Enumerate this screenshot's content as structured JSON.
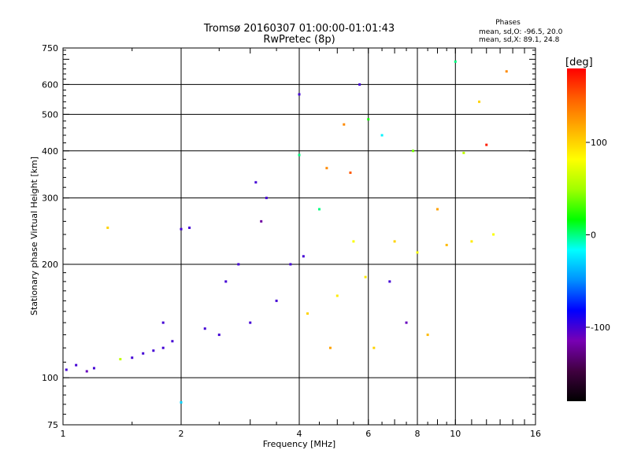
{
  "chart_data": {
    "type": "scatter",
    "title": "Tromsø 20160307 01:00:00-01:01:43",
    "subtitle": "RwPretec (8p)",
    "xlabel": "Frequency [MHz]",
    "ylabel": "Stationary phase Virtual Height [km]",
    "x_scale": "log",
    "y_scale": "log",
    "xlim": [
      1,
      16
    ],
    "ylim": [
      75,
      750
    ],
    "x_ticks": [
      "1",
      "2",
      "4",
      "6",
      "8",
      "10",
      "16"
    ],
    "x_tick_values": [
      1,
      2,
      4,
      6,
      8,
      10,
      16
    ],
    "y_ticks": [
      "75",
      "100",
      "200",
      "300",
      "400",
      "500",
      "600",
      "750"
    ],
    "y_tick_values": [
      75,
      100,
      200,
      300,
      400,
      500,
      600,
      750
    ],
    "x_grid_values": [
      2,
      4,
      6,
      8,
      10
    ],
    "y_grid_values": [
      100,
      200,
      300,
      400,
      500,
      600
    ],
    "grid": true,
    "phase_header": "Phases",
    "phase_stats": [
      "mean, sd,O: -96.5, 20.0",
      "mean, sd,X:  89.1, 24.8"
    ],
    "colorbar": {
      "label": "[deg]",
      "range": [
        -180,
        180
      ],
      "ticks": [
        "100",
        "0",
        "-100"
      ],
      "tick_values": [
        100,
        0,
        -100
      ],
      "colors": [
        "#000000",
        "#400040",
        "#7800b4",
        "#0000ff",
        "#0090ff",
        "#00ffff",
        "#00ff00",
        "#a0ff00",
        "#ffff00",
        "#ffb000",
        "#ff6000",
        "#ff0000"
      ]
    },
    "series": [
      {
        "name": "",
        "points": [
          {
            "x": 1.02,
            "y": 105,
            "phase": -100
          },
          {
            "x": 1.08,
            "y": 108,
            "phase": -100
          },
          {
            "x": 1.15,
            "y": 104,
            "phase": -110
          },
          {
            "x": 1.2,
            "y": 106,
            "phase": -100
          },
          {
            "x": 1.3,
            "y": 250,
            "phase": 100
          },
          {
            "x": 1.4,
            "y": 112,
            "phase": 60
          },
          {
            "x": 1.5,
            "y": 113,
            "phase": -100
          },
          {
            "x": 1.6,
            "y": 116,
            "phase": -100
          },
          {
            "x": 1.7,
            "y": 118,
            "phase": -100
          },
          {
            "x": 1.8,
            "y": 120,
            "phase": -100
          },
          {
            "x": 1.8,
            "y": 140,
            "phase": -100
          },
          {
            "x": 1.9,
            "y": 125,
            "phase": -100
          },
          {
            "x": 2.0,
            "y": 86,
            "phase": -30
          },
          {
            "x": 2.0,
            "y": 248,
            "phase": -100
          },
          {
            "x": 2.1,
            "y": 250,
            "phase": -100
          },
          {
            "x": 2.3,
            "y": 135,
            "phase": -100
          },
          {
            "x": 2.5,
            "y": 130,
            "phase": -100
          },
          {
            "x": 2.6,
            "y": 180,
            "phase": -100
          },
          {
            "x": 2.8,
            "y": 200,
            "phase": -100
          },
          {
            "x": 3.0,
            "y": 140,
            "phase": -100
          },
          {
            "x": 3.1,
            "y": 330,
            "phase": -100
          },
          {
            "x": 3.2,
            "y": 260,
            "phase": -120
          },
          {
            "x": 3.3,
            "y": 300,
            "phase": -100
          },
          {
            "x": 3.5,
            "y": 160,
            "phase": -100
          },
          {
            "x": 3.8,
            "y": 200,
            "phase": -100
          },
          {
            "x": 4.0,
            "y": 565,
            "phase": -100
          },
          {
            "x": 4.0,
            "y": 390,
            "phase": 0
          },
          {
            "x": 4.1,
            "y": 210,
            "phase": -100
          },
          {
            "x": 4.2,
            "y": 148,
            "phase": 100
          },
          {
            "x": 4.5,
            "y": 280,
            "phase": 0
          },
          {
            "x": 4.7,
            "y": 360,
            "phase": 130
          },
          {
            "x": 4.8,
            "y": 120,
            "phase": 120
          },
          {
            "x": 5.0,
            "y": 165,
            "phase": 90
          },
          {
            "x": 5.2,
            "y": 470,
            "phase": 130
          },
          {
            "x": 5.4,
            "y": 350,
            "phase": 150
          },
          {
            "x": 5.5,
            "y": 230,
            "phase": 80
          },
          {
            "x": 5.7,
            "y": 600,
            "phase": -100
          },
          {
            "x": 5.9,
            "y": 185,
            "phase": 90
          },
          {
            "x": 6.0,
            "y": 485,
            "phase": 20
          },
          {
            "x": 6.2,
            "y": 120,
            "phase": 100
          },
          {
            "x": 6.5,
            "y": 440,
            "phase": -20
          },
          {
            "x": 6.8,
            "y": 180,
            "phase": -100
          },
          {
            "x": 7.0,
            "y": 230,
            "phase": 100
          },
          {
            "x": 7.5,
            "y": 140,
            "phase": -110
          },
          {
            "x": 7.8,
            "y": 400,
            "phase": 40
          },
          {
            "x": 8.0,
            "y": 215,
            "phase": 80
          },
          {
            "x": 8.5,
            "y": 130,
            "phase": 110
          },
          {
            "x": 9.0,
            "y": 280,
            "phase": 120
          },
          {
            "x": 9.5,
            "y": 225,
            "phase": 110
          },
          {
            "x": 10.0,
            "y": 690,
            "phase": 0
          },
          {
            "x": 10.5,
            "y": 395,
            "phase": 60
          },
          {
            "x": 11.0,
            "y": 230,
            "phase": 90
          },
          {
            "x": 11.5,
            "y": 540,
            "phase": 100
          },
          {
            "x": 12.0,
            "y": 415,
            "phase": 170
          },
          {
            "x": 12.5,
            "y": 240,
            "phase": 80
          },
          {
            "x": 13.5,
            "y": 650,
            "phase": 130
          }
        ]
      }
    ]
  }
}
